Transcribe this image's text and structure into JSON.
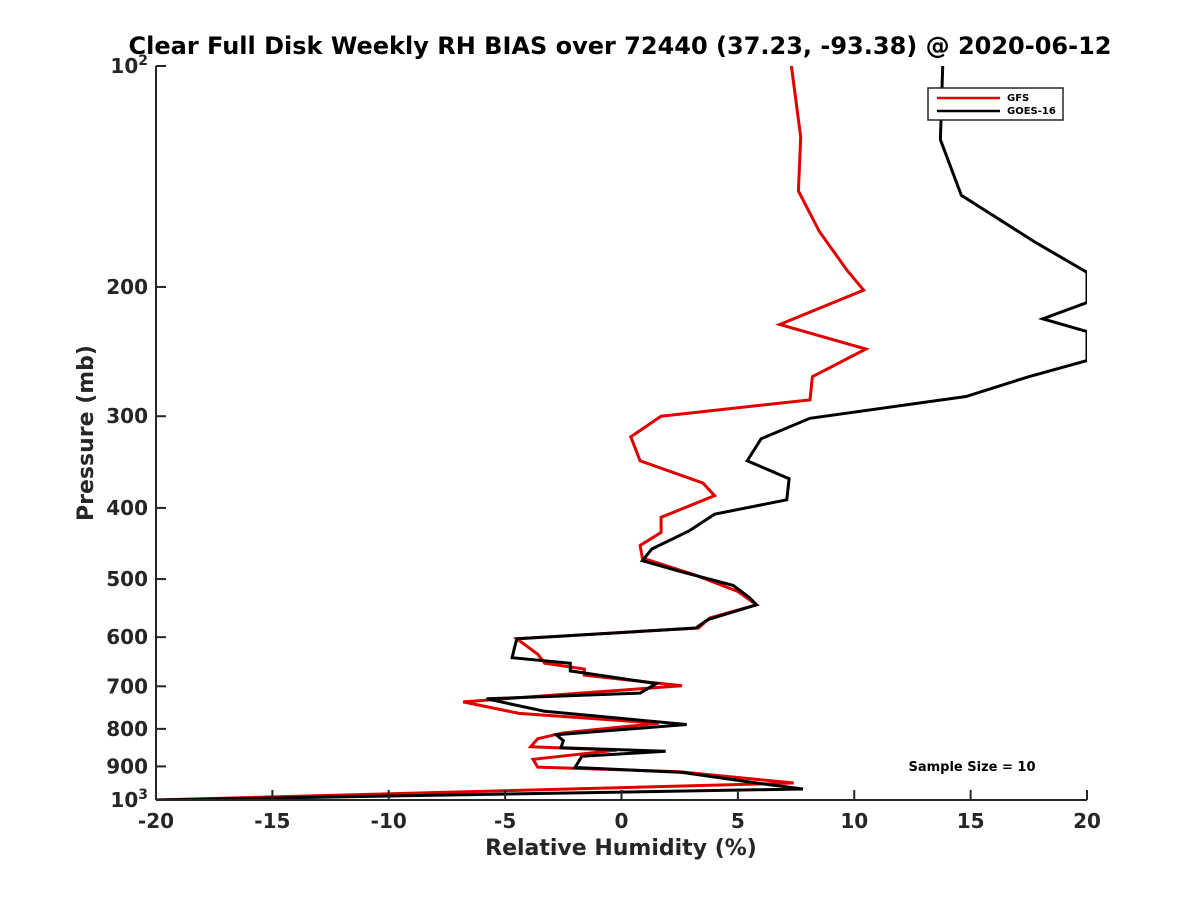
{
  "chart_data": {
    "type": "line",
    "title": "Clear Full Disk Weekly RH BIAS over 72440 (37.23, -93.38) @ 2020-06-12",
    "xlabel": "Relative Humidity (%)",
    "ylabel": "Pressure (mb)",
    "xlim": [
      -20,
      20
    ],
    "ylim": [
      100,
      1000
    ],
    "y_scale": "log",
    "y_reversed": true,
    "grid": false,
    "legend_position": "top-right",
    "x_ticks": [
      -20,
      -15,
      -10,
      -5,
      0,
      5,
      10,
      15,
      20
    ],
    "x_tick_labels": [
      "-20",
      "-15",
      "-10",
      "-5",
      "0",
      "5",
      "10",
      "15",
      "20"
    ],
    "y_ticks": [
      100,
      200,
      300,
      400,
      500,
      600,
      700,
      800,
      900,
      1000
    ],
    "y_tick_labels": [
      {
        "base": "10",
        "exp": "2"
      },
      {
        "base": "200",
        "exp": ""
      },
      {
        "base": "300",
        "exp": ""
      },
      {
        "base": "400",
        "exp": ""
      },
      {
        "base": "500",
        "exp": ""
      },
      {
        "base": "600",
        "exp": ""
      },
      {
        "base": "700",
        "exp": ""
      },
      {
        "base": "800",
        "exp": ""
      },
      {
        "base": "900",
        "exp": ""
      },
      {
        "base": "10",
        "exp": "3"
      }
    ],
    "annotation": "Sample Size = 10",
    "series": [
      {
        "name": "GFS",
        "color": "#e00000",
        "points": [
          [
            7.3,
            100
          ],
          [
            7.7,
            125
          ],
          [
            7.6,
            148
          ],
          [
            8.5,
            168
          ],
          [
            9.7,
            190
          ],
          [
            10.4,
            202
          ],
          [
            6.8,
            225
          ],
          [
            10.5,
            243
          ],
          [
            8.2,
            265
          ],
          [
            8.1,
            285
          ],
          [
            1.7,
            300
          ],
          [
            0.4,
            320
          ],
          [
            0.8,
            345
          ],
          [
            3.5,
            370
          ],
          [
            4.0,
            385
          ],
          [
            1.7,
            412
          ],
          [
            1.7,
            432
          ],
          [
            0.8,
            450
          ],
          [
            0.9,
            468
          ],
          [
            3.1,
            493
          ],
          [
            5.0,
            520
          ],
          [
            5.8,
            542
          ],
          [
            3.8,
            565
          ],
          [
            3.3,
            583
          ],
          [
            -4.5,
            603
          ],
          [
            -3.6,
            633
          ],
          [
            -3.3,
            651
          ],
          [
            -1.6,
            663
          ],
          [
            -1.6,
            676
          ],
          [
            2.6,
            699
          ],
          [
            -2.0,
            716
          ],
          [
            -6.8,
            735
          ],
          [
            -4.4,
            762
          ],
          [
            1.6,
            786
          ],
          [
            -2.5,
            810
          ],
          [
            -3.6,
            825
          ],
          [
            -3.9,
            846
          ],
          [
            -0.2,
            855
          ],
          [
            -3.8,
            880
          ],
          [
            -3.6,
            902
          ],
          [
            2.5,
            915
          ],
          [
            7.4,
            948
          ],
          [
            -20,
            1000
          ]
        ]
      },
      {
        "name": "GOES-16",
        "color": "#000000",
        "points": [
          [
            13.8,
            100
          ],
          [
            13.7,
            126
          ],
          [
            14.6,
            150
          ],
          [
            17.8,
            174
          ],
          [
            20.0,
            191
          ],
          [
            20.0,
            210
          ],
          [
            18.1,
            221
          ],
          [
            20.0,
            230
          ],
          [
            20.0,
            252
          ],
          [
            17.5,
            265
          ],
          [
            14.8,
            282
          ],
          [
            8.1,
            302
          ],
          [
            6.0,
            322
          ],
          [
            5.4,
            345
          ],
          [
            7.2,
            365
          ],
          [
            7.1,
            390
          ],
          [
            4.0,
            408
          ],
          [
            2.9,
            430
          ],
          [
            1.3,
            455
          ],
          [
            0.9,
            472
          ],
          [
            2.5,
            488
          ],
          [
            4.8,
            510
          ],
          [
            5.5,
            530
          ],
          [
            5.8,
            542
          ],
          [
            3.7,
            568
          ],
          [
            3.2,
            583
          ],
          [
            -4.5,
            603
          ],
          [
            -4.6,
            621
          ],
          [
            -4.7,
            640
          ],
          [
            -2.2,
            651
          ],
          [
            -2.2,
            667
          ],
          [
            1.5,
            694
          ],
          [
            0.8,
            715
          ],
          [
            -5.8,
            728
          ],
          [
            -3.3,
            757
          ],
          [
            2.8,
            789
          ],
          [
            -2.8,
            815
          ],
          [
            -2.5,
            830
          ],
          [
            -2.6,
            849
          ],
          [
            1.9,
            858
          ],
          [
            -1.7,
            872
          ],
          [
            -2.0,
            903
          ],
          [
            2.6,
            917
          ],
          [
            6.0,
            950
          ],
          [
            7.8,
            966
          ],
          [
            -20,
            1000
          ]
        ]
      }
    ]
  }
}
